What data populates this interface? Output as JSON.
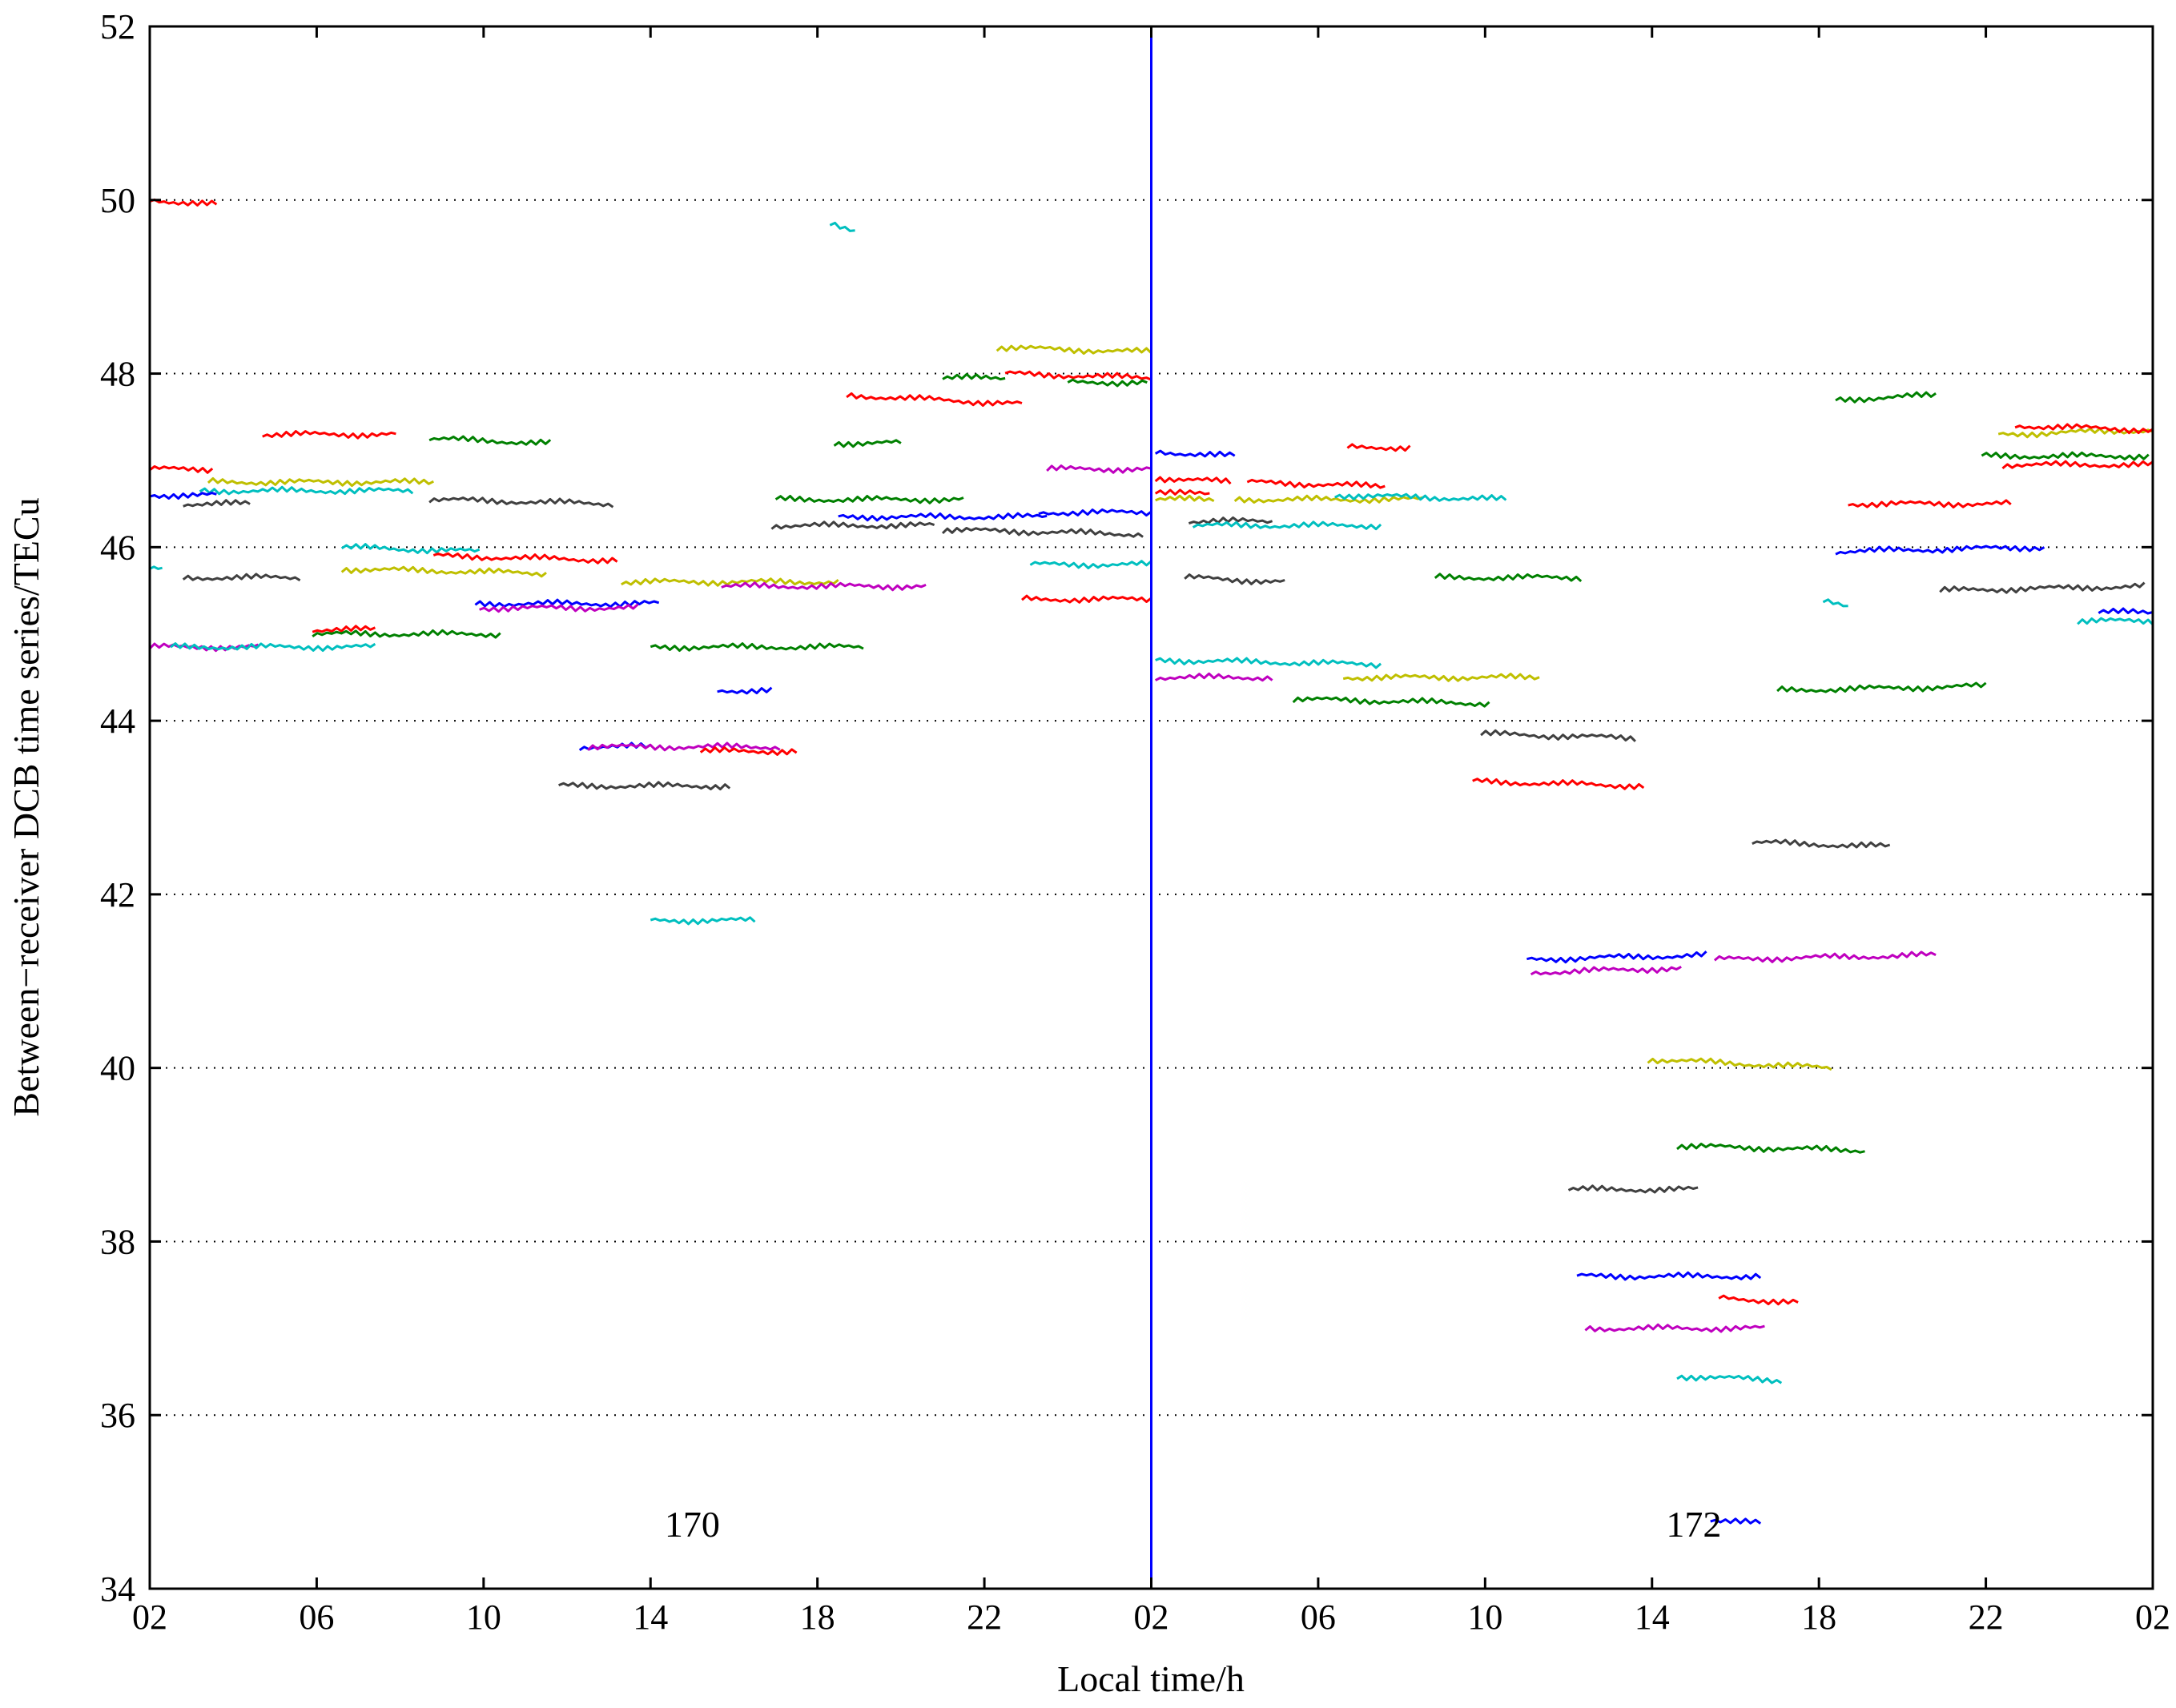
{
  "chart_data": {
    "type": "line",
    "xlabel": "Local time/h",
    "ylabel": "Between−receiver DCB time series/TECu",
    "xlim": [
      2,
      50
    ],
    "ylim": [
      34,
      52
    ],
    "x_ticks": [
      2,
      6,
      10,
      14,
      18,
      22,
      26,
      30,
      34,
      38,
      42,
      46,
      50
    ],
    "x_tick_labels": [
      "02",
      "06",
      "10",
      "14",
      "18",
      "22",
      "02",
      "06",
      "10",
      "14",
      "18",
      "22",
      "02"
    ],
    "y_ticks": [
      34,
      36,
      38,
      40,
      42,
      44,
      46,
      48,
      50,
      52
    ],
    "y_tick_labels": [
      "34",
      "36",
      "38",
      "40",
      "42",
      "44",
      "46",
      "48",
      "50",
      "52"
    ],
    "grid": "horizontal-dotted",
    "day_separator_x": 26,
    "day_separator_color": "#0000ff",
    "annotations": [
      {
        "text": "170",
        "x": 15.0,
        "y": 34.6
      },
      {
        "text": "172",
        "x": 39.0,
        "y": 34.6
      }
    ],
    "colors": {
      "red": "#ff0000",
      "green": "#008000",
      "blue": "#0000ff",
      "cyan": "#00bfbf",
      "magenta": "#bf00bf",
      "yellow": "#bfbf00",
      "gray": "#404040"
    },
    "segments": [
      {
        "color": "red",
        "x": [
          2.0,
          3.6
        ],
        "y": [
          50.0,
          49.95
        ]
      },
      {
        "color": "cyan",
        "x": [
          18.3,
          18.9
        ],
        "y": [
          49.75,
          49.65
        ]
      },
      {
        "color": "yellow",
        "x": [
          22.3,
          26.0
        ],
        "y": [
          48.3,
          48.25
        ]
      },
      {
        "color": "green",
        "x": [
          21.0,
          22.5
        ],
        "y": [
          47.95,
          47.95
        ]
      },
      {
        "color": "red",
        "x": [
          22.5,
          26.0
        ],
        "y": [
          48.0,
          47.95
        ]
      },
      {
        "color": "green",
        "x": [
          24.0,
          25.9
        ],
        "y": [
          47.9,
          47.9
        ]
      },
      {
        "color": "red",
        "x": [
          18.7,
          22.9
        ],
        "y": [
          47.75,
          47.65
        ]
      },
      {
        "color": "green",
        "x": [
          18.4,
          20.0
        ],
        "y": [
          47.2,
          47.2
        ]
      },
      {
        "color": "red",
        "x": [
          4.7,
          7.9
        ],
        "y": [
          47.3,
          47.3
        ]
      },
      {
        "color": "green",
        "x": [
          8.7,
          11.6
        ],
        "y": [
          47.25,
          47.2
        ]
      },
      {
        "color": "red",
        "x": [
          2.0,
          3.5
        ],
        "y": [
          46.9,
          46.9
        ]
      },
      {
        "color": "yellow",
        "x": [
          3.4,
          8.8
        ],
        "y": [
          46.75,
          46.75
        ]
      },
      {
        "color": "cyan",
        "x": [
          3.2,
          8.3
        ],
        "y": [
          46.65,
          46.65
        ]
      },
      {
        "color": "blue",
        "x": [
          2.0,
          3.6
        ],
        "y": [
          46.6,
          46.6
        ]
      },
      {
        "color": "gray",
        "x": [
          2.8,
          4.4
        ],
        "y": [
          46.5,
          46.5
        ]
      },
      {
        "color": "gray",
        "x": [
          8.7,
          13.1
        ],
        "y": [
          46.55,
          46.5
        ]
      },
      {
        "color": "magenta",
        "x": [
          23.5,
          26.0
        ],
        "y": [
          46.9,
          46.9
        ]
      },
      {
        "color": "green",
        "x": [
          17.0,
          21.5
        ],
        "y": [
          46.55,
          46.55
        ]
      },
      {
        "color": "blue",
        "x": [
          18.5,
          23.5
        ],
        "y": [
          46.35,
          46.35
        ]
      },
      {
        "color": "blue",
        "x": [
          23.3,
          26.0
        ],
        "y": [
          46.4,
          46.4
        ]
      },
      {
        "color": "gray",
        "x": [
          16.9,
          20.8
        ],
        "y": [
          46.25,
          46.25
        ]
      },
      {
        "color": "gray",
        "x": [
          21.0,
          25.8
        ],
        "y": [
          46.2,
          46.15
        ]
      },
      {
        "color": "cyan",
        "x": [
          6.6,
          9.9
        ],
        "y": [
          46.0,
          45.95
        ]
      },
      {
        "color": "red",
        "x": [
          8.8,
          13.2
        ],
        "y": [
          45.9,
          45.85
        ]
      },
      {
        "color": "cyan",
        "x": [
          2.0,
          2.3
        ],
        "y": [
          45.75,
          45.75
        ]
      },
      {
        "color": "gray",
        "x": [
          2.8,
          5.6
        ],
        "y": [
          45.65,
          45.65
        ]
      },
      {
        "color": "yellow",
        "x": [
          6.6,
          11.5
        ],
        "y": [
          45.75,
          45.7
        ]
      },
      {
        "color": "yellow",
        "x": [
          13.3,
          18.5
        ],
        "y": [
          45.6,
          45.6
        ]
      },
      {
        "color": "magenta",
        "x": [
          15.7,
          20.6
        ],
        "y": [
          45.55,
          45.55
        ]
      },
      {
        "color": "cyan",
        "x": [
          23.1,
          26.0
        ],
        "y": [
          45.8,
          45.8
        ]
      },
      {
        "color": "red",
        "x": [
          22.9,
          26.0
        ],
        "y": [
          45.4,
          45.4
        ]
      },
      {
        "color": "blue",
        "x": [
          9.8,
          14.2
        ],
        "y": [
          45.35,
          45.35
        ]
      },
      {
        "color": "magenta",
        "x": [
          9.9,
          13.7
        ],
        "y": [
          45.3,
          45.3
        ]
      },
      {
        "color": "red",
        "x": [
          5.9,
          7.4
        ],
        "y": [
          45.05,
          45.05
        ]
      },
      {
        "color": "green",
        "x": [
          5.9,
          10.4
        ],
        "y": [
          45.0,
          45.0
        ]
      },
      {
        "color": "magenta",
        "x": [
          2.0,
          4.6
        ],
        "y": [
          44.85,
          44.85
        ]
      },
      {
        "color": "cyan",
        "x": [
          2.5,
          7.4
        ],
        "y": [
          44.85,
          44.85
        ]
      },
      {
        "color": "green",
        "x": [
          14.0,
          19.1
        ],
        "y": [
          44.85,
          44.85
        ]
      },
      {
        "color": "blue",
        "x": [
          15.6,
          16.9
        ],
        "y": [
          44.35,
          44.35
        ]
      },
      {
        "color": "blue",
        "x": [
          12.3,
          14.0
        ],
        "y": [
          43.7,
          43.7
        ]
      },
      {
        "color": "magenta",
        "x": [
          12.5,
          17.1
        ],
        "y": [
          43.7,
          43.7
        ]
      },
      {
        "color": "red",
        "x": [
          15.2,
          17.5
        ],
        "y": [
          43.65,
          43.65
        ]
      },
      {
        "color": "gray",
        "x": [
          11.8,
          15.9
        ],
        "y": [
          43.25,
          43.25
        ]
      },
      {
        "color": "cyan",
        "x": [
          14.0,
          16.5
        ],
        "y": [
          41.7,
          41.7
        ]
      },
      {
        "color": "blue",
        "x": [
          26.1,
          28.0
        ],
        "y": [
          47.1,
          47.05
        ]
      },
      {
        "color": "red",
        "x": [
          26.1,
          27.9
        ],
        "y": [
          46.8,
          46.75
        ]
      },
      {
        "color": "red",
        "x": [
          26.1,
          27.4
        ],
        "y": [
          46.65,
          46.6
        ]
      },
      {
        "color": "yellow",
        "x": [
          26.1,
          27.5
        ],
        "y": [
          46.55,
          46.55
        ]
      },
      {
        "color": "red",
        "x": [
          28.3,
          31.6
        ],
        "y": [
          46.75,
          46.7
        ]
      },
      {
        "color": "red",
        "x": [
          30.7,
          32.2
        ],
        "y": [
          47.15,
          47.15
        ]
      },
      {
        "color": "yellow",
        "x": [
          28.0,
          32.5
        ],
        "y": [
          46.55,
          46.55
        ]
      },
      {
        "color": "cyan",
        "x": [
          30.4,
          34.5
        ],
        "y": [
          46.6,
          46.55
        ]
      },
      {
        "color": "gray",
        "x": [
          26.9,
          28.9
        ],
        "y": [
          46.3,
          46.3
        ]
      },
      {
        "color": "cyan",
        "x": [
          27.0,
          31.5
        ],
        "y": [
          46.25,
          46.25
        ]
      },
      {
        "color": "gray",
        "x": [
          26.8,
          29.2
        ],
        "y": [
          45.65,
          45.6
        ]
      },
      {
        "color": "green",
        "x": [
          32.8,
          36.3
        ],
        "y": [
          45.65,
          45.65
        ]
      },
      {
        "color": "cyan",
        "x": [
          26.1,
          31.5
        ],
        "y": [
          44.7,
          44.65
        ]
      },
      {
        "color": "yellow",
        "x": [
          30.6,
          35.3
        ],
        "y": [
          44.5,
          44.5
        ]
      },
      {
        "color": "magenta",
        "x": [
          26.1,
          28.9
        ],
        "y": [
          44.5,
          44.5
        ]
      },
      {
        "color": "green",
        "x": [
          29.4,
          34.1
        ],
        "y": [
          44.25,
          44.2
        ]
      },
      {
        "color": "gray",
        "x": [
          33.9,
          37.6
        ],
        "y": [
          43.85,
          43.8
        ]
      },
      {
        "color": "red",
        "x": [
          33.7,
          37.8
        ],
        "y": [
          43.3,
          43.25
        ]
      },
      {
        "color": "blue",
        "x": [
          35.0,
          39.3
        ],
        "y": [
          41.25,
          41.3
        ]
      },
      {
        "color": "magenta",
        "x": [
          35.1,
          38.7
        ],
        "y": [
          41.1,
          41.15
        ]
      },
      {
        "color": "yellow",
        "x": [
          37.9,
          42.3
        ],
        "y": [
          40.1,
          40.0
        ]
      },
      {
        "color": "green",
        "x": [
          38.6,
          43.1
        ],
        "y": [
          39.1,
          39.05
        ]
      },
      {
        "color": "gray",
        "x": [
          36.0,
          39.1
        ],
        "y": [
          38.6,
          38.6
        ]
      },
      {
        "color": "blue",
        "x": [
          36.2,
          40.6
        ],
        "y": [
          37.6,
          37.6
        ]
      },
      {
        "color": "red",
        "x": [
          39.6,
          41.5
        ],
        "y": [
          37.35,
          37.3
        ]
      },
      {
        "color": "magenta",
        "x": [
          36.4,
          40.7
        ],
        "y": [
          37.0,
          37.0
        ]
      },
      {
        "color": "cyan",
        "x": [
          38.6,
          41.1
        ],
        "y": [
          36.45,
          36.4
        ]
      },
      {
        "color": "blue",
        "x": [
          39.4,
          40.6
        ],
        "y": [
          34.8,
          34.75
        ]
      },
      {
        "color": "gray",
        "x": [
          40.4,
          43.7
        ],
        "y": [
          42.6,
          42.55
        ]
      },
      {
        "color": "magenta",
        "x": [
          39.5,
          44.8
        ],
        "y": [
          41.25,
          41.3
        ]
      },
      {
        "color": "green",
        "x": [
          41.0,
          46.0
        ],
        "y": [
          44.35,
          44.4
        ]
      },
      {
        "color": "green",
        "x": [
          42.4,
          44.8
        ],
        "y": [
          47.7,
          47.75
        ]
      },
      {
        "color": "red",
        "x": [
          42.7,
          46.6
        ],
        "y": [
          46.5,
          46.5
        ]
      },
      {
        "color": "blue",
        "x": [
          42.4,
          47.4
        ],
        "y": [
          45.95,
          46.0
        ]
      },
      {
        "color": "cyan",
        "x": [
          42.1,
          42.7
        ],
        "y": [
          45.4,
          45.3
        ]
      },
      {
        "color": "gray",
        "x": [
          44.9,
          49.8
        ],
        "y": [
          45.5,
          45.55
        ]
      },
      {
        "color": "green",
        "x": [
          45.9,
          49.9
        ],
        "y": [
          47.05,
          47.05
        ]
      },
      {
        "color": "yellow",
        "x": [
          46.3,
          50.0
        ],
        "y": [
          47.3,
          47.35
        ]
      },
      {
        "color": "red",
        "x": [
          46.7,
          50.0
        ],
        "y": [
          47.4,
          47.35
        ]
      },
      {
        "color": "red",
        "x": [
          46.4,
          50.0
        ],
        "y": [
          46.95,
          46.95
        ]
      },
      {
        "color": "cyan",
        "x": [
          48.2,
          50.0
        ],
        "y": [
          45.15,
          45.15
        ]
      },
      {
        "color": "blue",
        "x": [
          48.7,
          50.0
        ],
        "y": [
          45.25,
          45.25
        ]
      }
    ]
  }
}
